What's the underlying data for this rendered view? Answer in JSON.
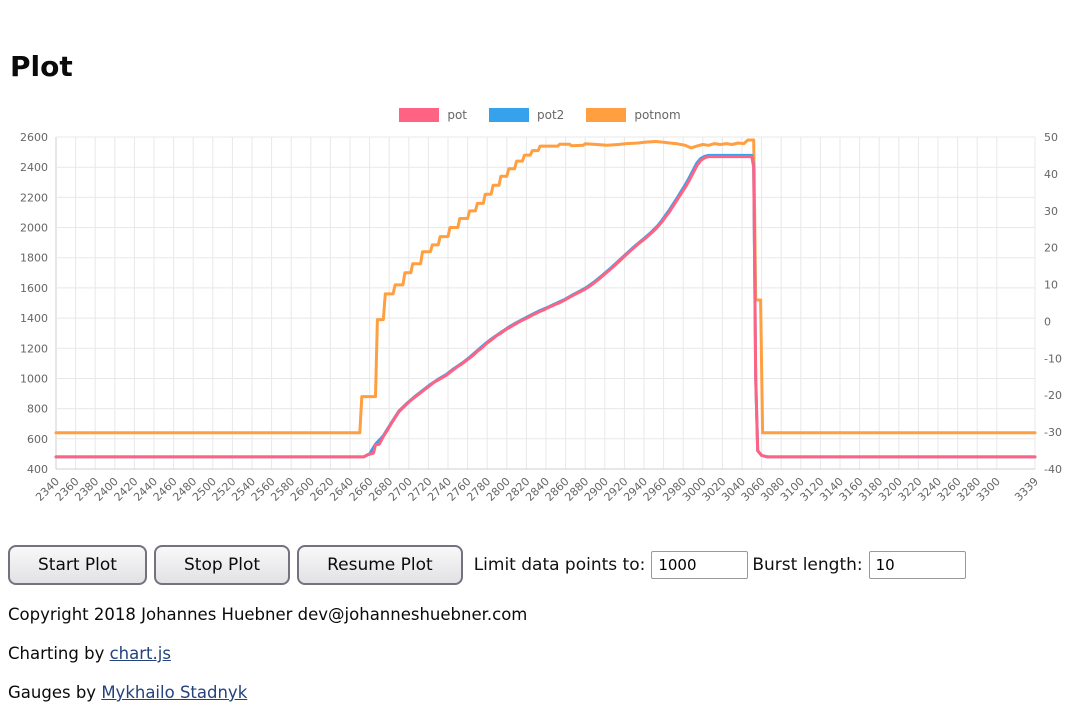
{
  "title": "Plot",
  "chart_data": {
    "type": "line",
    "legend_position": "top",
    "grid": true,
    "x_range": [
      2340,
      3339
    ],
    "x_ticks": [
      2340,
      2360,
      2380,
      2400,
      2420,
      2440,
      2460,
      2480,
      2500,
      2520,
      2540,
      2560,
      2580,
      2600,
      2620,
      2640,
      2660,
      2680,
      2700,
      2720,
      2740,
      2760,
      2780,
      2800,
      2820,
      2840,
      2860,
      2880,
      2900,
      2920,
      2940,
      2960,
      2980,
      3000,
      3020,
      3040,
      3060,
      3080,
      3100,
      3120,
      3140,
      3160,
      3180,
      3200,
      3220,
      3240,
      3260,
      3280,
      3300,
      3339
    ],
    "left_axis": {
      "min": 400,
      "max": 2600,
      "ticks": [
        2600,
        2400,
        2200,
        2000,
        1800,
        1600,
        1400,
        1200,
        1000,
        800,
        600,
        400
      ]
    },
    "right_axis": {
      "min": -40,
      "max": 50,
      "ticks": [
        50,
        40,
        30,
        20,
        10,
        0,
        -10,
        -20,
        -30,
        -40
      ]
    },
    "grid_color": "#e8e8e8",
    "tick_color": "#666666",
    "series": [
      {
        "name": "pot",
        "color": "#ff6384",
        "points": [
          [
            2340,
            480
          ],
          [
            2654,
            480
          ],
          [
            2658,
            495
          ],
          [
            2664,
            505
          ],
          [
            2666,
            560
          ],
          [
            2670,
            565
          ],
          [
            2674,
            615
          ],
          [
            2678,
            655
          ],
          [
            2682,
            700
          ],
          [
            2686,
            740
          ],
          [
            2690,
            780
          ],
          [
            2694,
            805
          ],
          [
            2698,
            830
          ],
          [
            2702,
            855
          ],
          [
            2706,
            875
          ],
          [
            2710,
            895
          ],
          [
            2714,
            915
          ],
          [
            2718,
            935
          ],
          [
            2722,
            955
          ],
          [
            2726,
            975
          ],
          [
            2730,
            990
          ],
          [
            2734,
            1005
          ],
          [
            2738,
            1020
          ],
          [
            2742,
            1040
          ],
          [
            2746,
            1060
          ],
          [
            2750,
            1080
          ],
          [
            2754,
            1095
          ],
          [
            2758,
            1115
          ],
          [
            2762,
            1135
          ],
          [
            2766,
            1155
          ],
          [
            2770,
            1180
          ],
          [
            2774,
            1200
          ],
          [
            2778,
            1225
          ],
          [
            2782,
            1245
          ],
          [
            2786,
            1265
          ],
          [
            2790,
            1285
          ],
          [
            2794,
            1300
          ],
          [
            2798,
            1320
          ],
          [
            2802,
            1335
          ],
          [
            2806,
            1350
          ],
          [
            2810,
            1365
          ],
          [
            2814,
            1380
          ],
          [
            2818,
            1392
          ],
          [
            2822,
            1405
          ],
          [
            2826,
            1420
          ],
          [
            2830,
            1432
          ],
          [
            2834,
            1445
          ],
          [
            2838,
            1455
          ],
          [
            2842,
            1468
          ],
          [
            2846,
            1480
          ],
          [
            2850,
            1492
          ],
          [
            2854,
            1502
          ],
          [
            2858,
            1515
          ],
          [
            2862,
            1530
          ],
          [
            2866,
            1545
          ],
          [
            2870,
            1558
          ],
          [
            2874,
            1572
          ],
          [
            2878,
            1585
          ],
          [
            2882,
            1600
          ],
          [
            2886,
            1618
          ],
          [
            2890,
            1638
          ],
          [
            2894,
            1658
          ],
          [
            2898,
            1680
          ],
          [
            2902,
            1702
          ],
          [
            2906,
            1725
          ],
          [
            2910,
            1748
          ],
          [
            2914,
            1772
          ],
          [
            2918,
            1796
          ],
          [
            2922,
            1820
          ],
          [
            2926,
            1845
          ],
          [
            2930,
            1868
          ],
          [
            2934,
            1890
          ],
          [
            2938,
            1910
          ],
          [
            2942,
            1932
          ],
          [
            2946,
            1955
          ],
          [
            2950,
            1978
          ],
          [
            2954,
            2005
          ],
          [
            2958,
            2035
          ],
          [
            2962,
            2070
          ],
          [
            2966,
            2105
          ],
          [
            2970,
            2145
          ],
          [
            2974,
            2185
          ],
          [
            2978,
            2225
          ],
          [
            2982,
            2265
          ],
          [
            2986,
            2310
          ],
          [
            2990,
            2360
          ],
          [
            2994,
            2410
          ],
          [
            2998,
            2445
          ],
          [
            3002,
            2462
          ],
          [
            3006,
            2470
          ],
          [
            3050,
            2470
          ],
          [
            3052,
            2400
          ],
          [
            3054,
            1000
          ],
          [
            3056,
            520
          ],
          [
            3060,
            490
          ],
          [
            3066,
            480
          ],
          [
            3339,
            480
          ]
        ]
      },
      {
        "name": "pot2",
        "color": "#36a2eb",
        "points": [
          [
            2340,
            480
          ],
          [
            2654,
            480
          ],
          [
            2660,
            500
          ],
          [
            2666,
            565
          ],
          [
            2674,
            620
          ],
          [
            2682,
            705
          ],
          [
            2690,
            785
          ],
          [
            2698,
            835
          ],
          [
            2706,
            880
          ],
          [
            2714,
            920
          ],
          [
            2722,
            960
          ],
          [
            2730,
            995
          ],
          [
            2738,
            1025
          ],
          [
            2746,
            1065
          ],
          [
            2754,
            1100
          ],
          [
            2762,
            1140
          ],
          [
            2770,
            1185
          ],
          [
            2778,
            1230
          ],
          [
            2786,
            1270
          ],
          [
            2794,
            1305
          ],
          [
            2802,
            1340
          ],
          [
            2810,
            1370
          ],
          [
            2818,
            1397
          ],
          [
            2826,
            1425
          ],
          [
            2834,
            1450
          ],
          [
            2842,
            1472
          ],
          [
            2850,
            1497
          ],
          [
            2858,
            1520
          ],
          [
            2866,
            1550
          ],
          [
            2874,
            1577
          ],
          [
            2882,
            1606
          ],
          [
            2890,
            1644
          ],
          [
            2898,
            1686
          ],
          [
            2906,
            1731
          ],
          [
            2914,
            1778
          ],
          [
            2922,
            1826
          ],
          [
            2930,
            1874
          ],
          [
            2938,
            1916
          ],
          [
            2946,
            1961
          ],
          [
            2954,
            2012
          ],
          [
            2958,
            2045
          ],
          [
            2962,
            2082
          ],
          [
            2966,
            2118
          ],
          [
            2970,
            2158
          ],
          [
            2974,
            2198
          ],
          [
            2978,
            2240
          ],
          [
            2982,
            2282
          ],
          [
            2986,
            2328
          ],
          [
            2990,
            2378
          ],
          [
            2994,
            2428
          ],
          [
            2998,
            2458
          ],
          [
            3002,
            2472
          ],
          [
            3006,
            2478
          ],
          [
            3050,
            2478
          ],
          [
            3052,
            2410
          ],
          [
            3054,
            1005
          ],
          [
            3056,
            522
          ],
          [
            3060,
            490
          ],
          [
            3066,
            480
          ],
          [
            3339,
            480
          ]
        ]
      },
      {
        "name": "potnom",
        "color": "#ff9f40",
        "points": [
          [
            2340,
            640
          ],
          [
            2650,
            640
          ],
          [
            2652,
            880
          ],
          [
            2666,
            880
          ],
          [
            2668,
            1390
          ],
          [
            2674,
            1390
          ],
          [
            2676,
            1560
          ],
          [
            2684,
            1560
          ],
          [
            2686,
            1620
          ],
          [
            2694,
            1620
          ],
          [
            2696,
            1700
          ],
          [
            2702,
            1700
          ],
          [
            2704,
            1760
          ],
          [
            2712,
            1760
          ],
          [
            2714,
            1840
          ],
          [
            2722,
            1840
          ],
          [
            2724,
            1885
          ],
          [
            2730,
            1885
          ],
          [
            2732,
            1940
          ],
          [
            2740,
            1940
          ],
          [
            2742,
            2000
          ],
          [
            2750,
            2000
          ],
          [
            2752,
            2060
          ],
          [
            2760,
            2060
          ],
          [
            2762,
            2110
          ],
          [
            2768,
            2110
          ],
          [
            2770,
            2160
          ],
          [
            2776,
            2160
          ],
          [
            2778,
            2220
          ],
          [
            2784,
            2220
          ],
          [
            2786,
            2280
          ],
          [
            2792,
            2280
          ],
          [
            2794,
            2340
          ],
          [
            2800,
            2340
          ],
          [
            2802,
            2390
          ],
          [
            2808,
            2390
          ],
          [
            2810,
            2440
          ],
          [
            2816,
            2440
          ],
          [
            2818,
            2480
          ],
          [
            2824,
            2480
          ],
          [
            2826,
            2510
          ],
          [
            2832,
            2510
          ],
          [
            2834,
            2540
          ],
          [
            2852,
            2540
          ],
          [
            2854,
            2552
          ],
          [
            2864,
            2552
          ],
          [
            2866,
            2542
          ],
          [
            2878,
            2545
          ],
          [
            2880,
            2555
          ],
          [
            2892,
            2550
          ],
          [
            2902,
            2545
          ],
          [
            2914,
            2550
          ],
          [
            2922,
            2556
          ],
          [
            2934,
            2560
          ],
          [
            2942,
            2566
          ],
          [
            2952,
            2570
          ],
          [
            2960,
            2565
          ],
          [
            2966,
            2560
          ],
          [
            2974,
            2555
          ],
          [
            2982,
            2545
          ],
          [
            2988,
            2528
          ],
          [
            2994,
            2540
          ],
          [
            3000,
            2550
          ],
          [
            3006,
            2545
          ],
          [
            3012,
            2556
          ],
          [
            3018,
            2550
          ],
          [
            3024,
            2556
          ],
          [
            3030,
            2550
          ],
          [
            3036,
            2560
          ],
          [
            3042,
            2556
          ],
          [
            3046,
            2580
          ],
          [
            3052,
            2580
          ],
          [
            3054,
            1520
          ],
          [
            3059,
            1520
          ],
          [
            3061,
            640
          ],
          [
            3339,
            640
          ]
        ]
      }
    ]
  },
  "controls": {
    "start_label": "Start Plot",
    "stop_label": "Stop Plot",
    "resume_label": "Resume Plot",
    "limit_label": "Limit data points to:",
    "limit_value": "1000",
    "burst_label": "Burst length:",
    "burst_value": "10"
  },
  "footer": {
    "copyright": "Copyright 2018 Johannes Huebner dev@johanneshuebner.com",
    "charting_prefix": "Charting by ",
    "charting_link": "chart.js",
    "gauges_prefix": "Gauges by ",
    "gauges_link": "Mykhailo Stadnyk"
  }
}
